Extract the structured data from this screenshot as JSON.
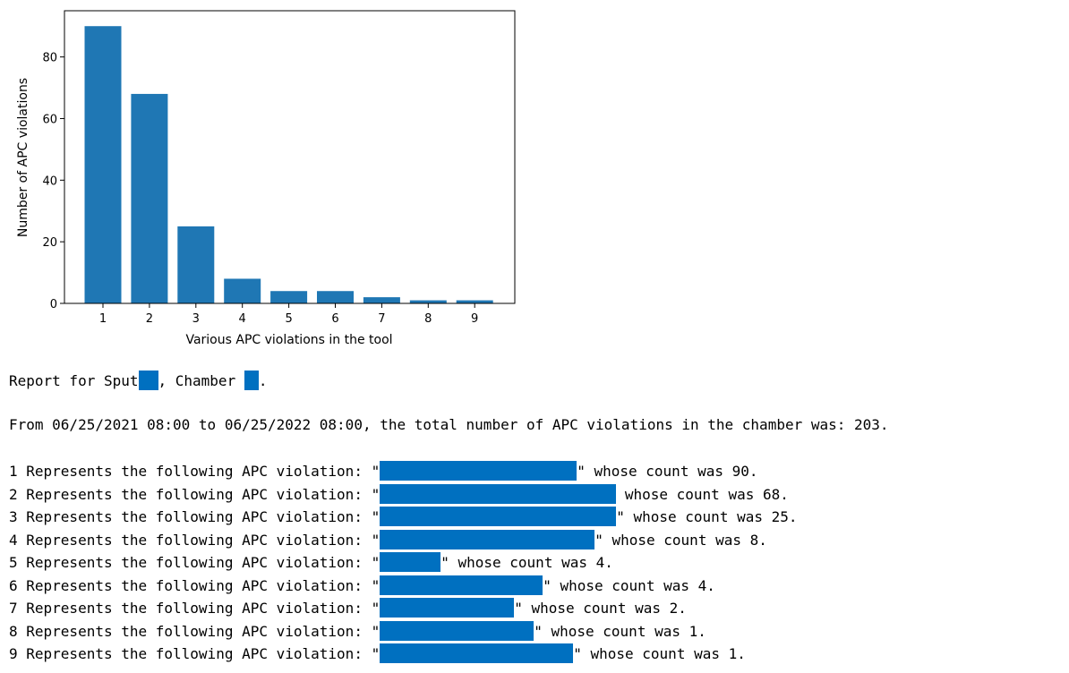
{
  "chart_data": {
    "type": "bar",
    "categories": [
      "1",
      "2",
      "3",
      "4",
      "5",
      "6",
      "7",
      "8",
      "9"
    ],
    "values": [
      90,
      68,
      25,
      8,
      4,
      4,
      2,
      1,
      1
    ],
    "xlabel": "Various APC violations in the tool",
    "ylabel": "Number of APC violations",
    "ylim": [
      0,
      95
    ],
    "yticks": [
      0,
      20,
      40,
      60,
      80
    ],
    "bar_color": "#1f77b4",
    "grid": false
  },
  "report": {
    "line1_prefix": "Report for Sput",
    "line1_mid": ", Chamber ",
    "line1_suffix": ".",
    "summary": "From 06/25/2021 08:00 to 06/25/2022 08:00, the total number of APC violations in the chamber was: 203.",
    "redaction_color": "#0070c0",
    "violations": [
      {
        "prefix": "1 Represents the following APC violation: \"",
        "suffix": "\" whose count was 90."
      },
      {
        "prefix": "2 Represents the following APC violation: \"",
        "suffix": " whose count was 68."
      },
      {
        "prefix": "3 Represents the following APC violation: \"",
        "suffix": "\" whose count was 25."
      },
      {
        "prefix": "4 Represents the following APC violation: \"",
        "suffix": "\" whose count was 8."
      },
      {
        "prefix": "5 Represents the following APC violation: \"",
        "suffix": "\" whose count was 4."
      },
      {
        "prefix": "6 Represents the following APC violation: \"",
        "suffix": "\" whose count was 4."
      },
      {
        "prefix": "7 Represents the following APC violation: \"",
        "suffix": "\" whose count was 2."
      },
      {
        "prefix": "8 Represents the following APC violation: \"",
        "suffix": "\" whose count was 1."
      },
      {
        "prefix": "9 Represents the following APC violation: \"",
        "suffix": "\" whose count was 1."
      }
    ]
  }
}
